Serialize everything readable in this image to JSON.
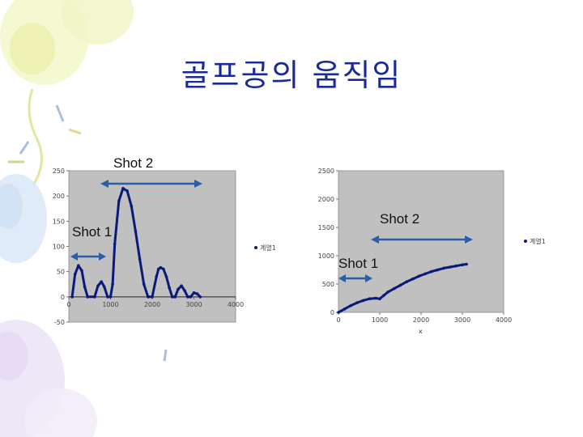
{
  "slide": {
    "title": "골프공의 움직임"
  },
  "colors": {
    "title": "#1a2a9a",
    "series": "#0a1a7a",
    "arrow": "#2a5fa8",
    "plot_bg": "#c0c0c0"
  },
  "chart_data": [
    {
      "type": "line",
      "title": "",
      "xlabel": "",
      "ylabel": "",
      "xlim": [
        0,
        4000
      ],
      "ylim": [
        -50,
        250
      ],
      "x_ticks": [
        "0",
        "1000",
        "2000",
        "3000",
        "4000"
      ],
      "y_ticks": [
        "-50",
        "0",
        "50",
        "100",
        "150",
        "200",
        "250"
      ],
      "grid": false,
      "legend": {
        "position": "right",
        "entries": [
          "계열1"
        ]
      },
      "series": [
        {
          "name": "계열1",
          "x": [
            80,
            150,
            230,
            310,
            380,
            450,
            620,
            700,
            780,
            850,
            930,
            1000,
            1050,
            1100,
            1200,
            1300,
            1400,
            1500,
            1600,
            1700,
            1800,
            1900,
            2000,
            2100,
            2150,
            2200,
            2270,
            2340,
            2410,
            2480,
            2550,
            2620,
            2700,
            2780,
            2850,
            2920,
            3000,
            3080,
            3150
          ],
          "y": [
            0,
            45,
            62,
            52,
            20,
            0,
            0,
            22,
            30,
            20,
            0,
            0,
            25,
            105,
            190,
            215,
            210,
            180,
            130,
            75,
            25,
            0,
            0,
            40,
            55,
            58,
            55,
            40,
            18,
            0,
            0,
            15,
            22,
            12,
            0,
            0,
            8,
            6,
            0
          ]
        }
      ],
      "annotations": [
        "Shot 2",
        "Shot 1"
      ]
    },
    {
      "type": "line",
      "title": "",
      "xlabel": "x",
      "ylabel": "",
      "xlim": [
        0,
        4000
      ],
      "ylim": [
        0,
        2500
      ],
      "x_ticks": [
        "0",
        "1000",
        "2000",
        "3000",
        "4000"
      ],
      "y_ticks": [
        "0",
        "500",
        "1000",
        "1500",
        "2000",
        "2500"
      ],
      "grid": false,
      "legend": {
        "position": "right",
        "entries": [
          "계열1"
        ]
      },
      "series": [
        {
          "name": "계열1",
          "x": [
            0,
            150,
            300,
            450,
            600,
            750,
            900,
            1000,
            1100,
            1200,
            1350,
            1500,
            1650,
            1800,
            1950,
            2100,
            2250,
            2400,
            2550,
            2700,
            2850,
            3000,
            3100
          ],
          "y": [
            0,
            60,
            120,
            170,
            210,
            240,
            250,
            240,
            300,
            360,
            420,
            480,
            540,
            590,
            640,
            680,
            720,
            750,
            780,
            800,
            820,
            840,
            850
          ]
        }
      ],
      "annotations": [
        "Shot 2",
        "Shot 1"
      ]
    }
  ]
}
